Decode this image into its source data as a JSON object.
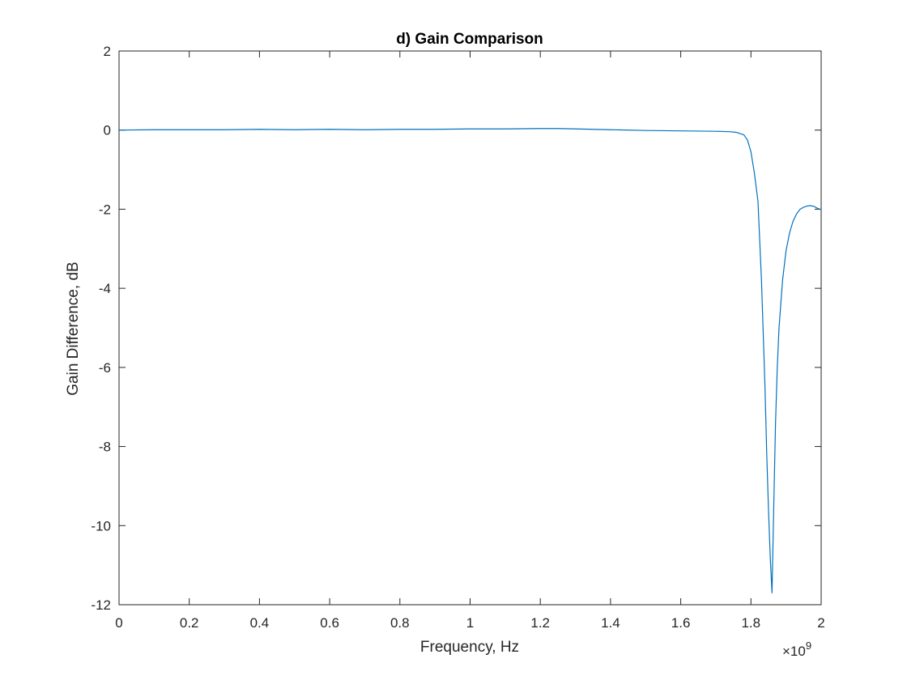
{
  "chart_data": {
    "type": "line",
    "title": "d) Gain Comparison",
    "xlabel": "Frequency, Hz",
    "ylabel": "Gain Difference, dB",
    "x_exponent_label": {
      "base": "×10",
      "exponent": "9"
    },
    "xlim": [
      0,
      2
    ],
    "ylim": [
      -12,
      2
    ],
    "xticks": [
      0,
      0.2,
      0.4,
      0.6,
      0.8,
      1,
      1.2,
      1.4,
      1.6,
      1.8,
      2
    ],
    "xtick_labels": [
      "0",
      "0.2",
      "0.4",
      "0.6",
      "0.8",
      "1",
      "1.2",
      "1.4",
      "1.6",
      "1.8",
      "2"
    ],
    "yticks": [
      2,
      0,
      -2,
      -4,
      -6,
      -8,
      -10,
      -12
    ],
    "ytick_labels": [
      "2",
      "0",
      "-2",
      "-4",
      "-6",
      "-8",
      "-10",
      "-12"
    ],
    "grid": false,
    "box": true,
    "series": [
      {
        "color": "#0072BD",
        "x": [
          0,
          0.1,
          0.2,
          0.3,
          0.4,
          0.5,
          0.6,
          0.7,
          0.8,
          0.9,
          1.0,
          1.1,
          1.2,
          1.25,
          1.3,
          1.4,
          1.5,
          1.6,
          1.7,
          1.74,
          1.76,
          1.78,
          1.79,
          1.8,
          1.81,
          1.82,
          1.83,
          1.84,
          1.845,
          1.85,
          1.855,
          1.86,
          1.865,
          1.87,
          1.875,
          1.88,
          1.89,
          1.9,
          1.91,
          1.92,
          1.93,
          1.94,
          1.95,
          1.96,
          1.97,
          1.98,
          1.99,
          2.0
        ],
        "y": [
          0.0,
          0.01,
          0.01,
          0.01,
          0.02,
          0.01,
          0.02,
          0.01,
          0.02,
          0.02,
          0.03,
          0.03,
          0.04,
          0.04,
          0.03,
          0.01,
          -0.01,
          -0.02,
          -0.03,
          -0.04,
          -0.06,
          -0.12,
          -0.25,
          -0.55,
          -1.1,
          -1.8,
          -3.8,
          -6.5,
          -8.2,
          -9.6,
          -10.8,
          -11.7,
          -9.5,
          -7.4,
          -6.0,
          -5.0,
          -3.8,
          -3.05,
          -2.6,
          -2.3,
          -2.12,
          -2.0,
          -1.95,
          -1.92,
          -1.91,
          -1.93,
          -1.98,
          -2.01
        ]
      }
    ]
  }
}
